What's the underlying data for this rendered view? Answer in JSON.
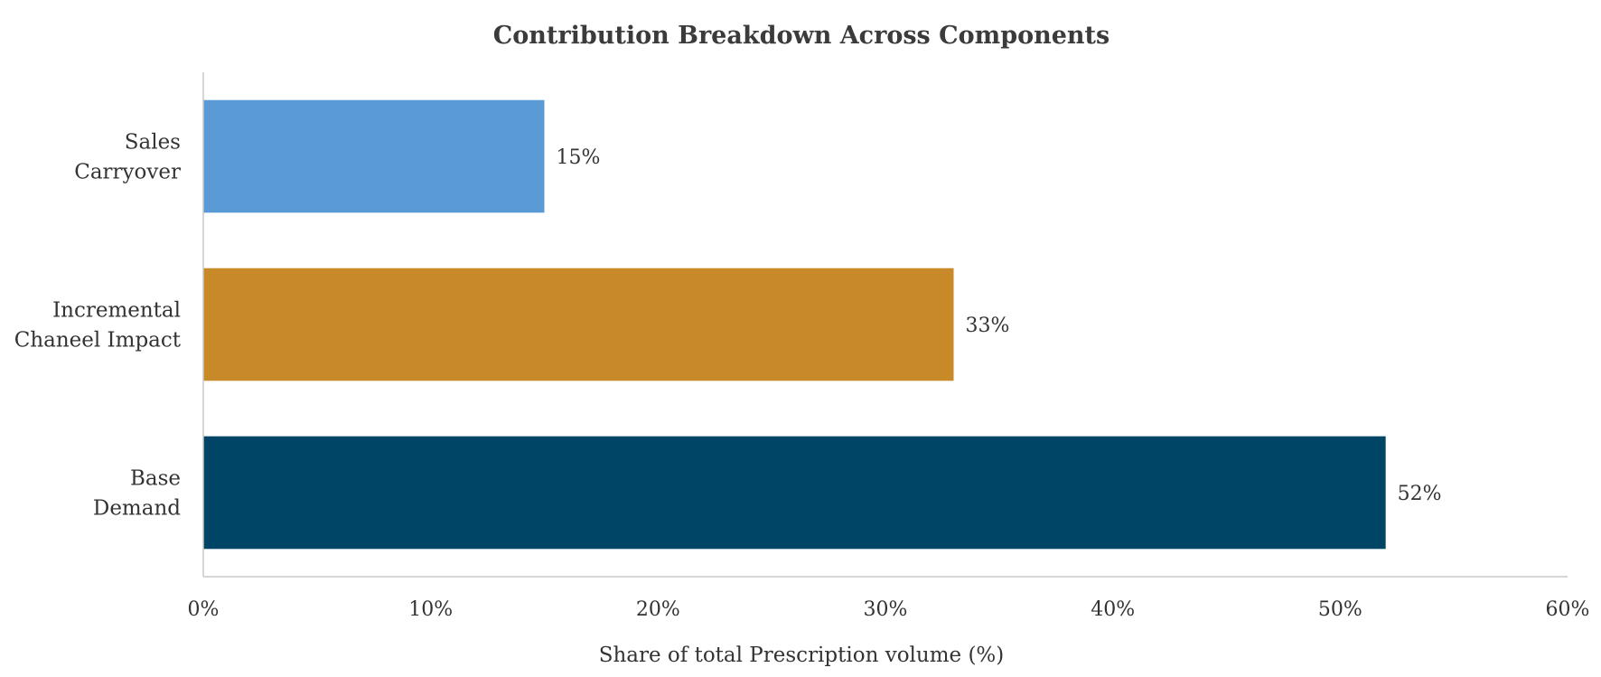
{
  "chart_data": {
    "type": "bar",
    "orientation": "horizontal",
    "title": "Contribution Breakdown Across Components",
    "xlabel": "Share of total Prescription volume (%)",
    "ylabel": "",
    "xlim": [
      0,
      60
    ],
    "x_ticks": [
      0,
      10,
      20,
      30,
      40,
      50,
      60
    ],
    "x_tick_labels": [
      "0%",
      "10%",
      "20%",
      "30%",
      "40%",
      "50%",
      "60%"
    ],
    "grid": false,
    "legend": "none",
    "categories": [
      {
        "key": "sales-carryover",
        "lines": [
          "Sales",
          "Carryover"
        ],
        "value": 15,
        "label": "15%",
        "color": "#5b9bd5"
      },
      {
        "key": "incremental-channel-impact",
        "lines": [
          "Incremental",
          "Chaneel Impact"
        ],
        "value": 33,
        "label": "33%",
        "color": "#c88a29"
      },
      {
        "key": "base-demand",
        "lines": [
          "Base",
          "Demand"
        ],
        "value": 52,
        "label": "52%",
        "color": "#004466"
      }
    ]
  }
}
